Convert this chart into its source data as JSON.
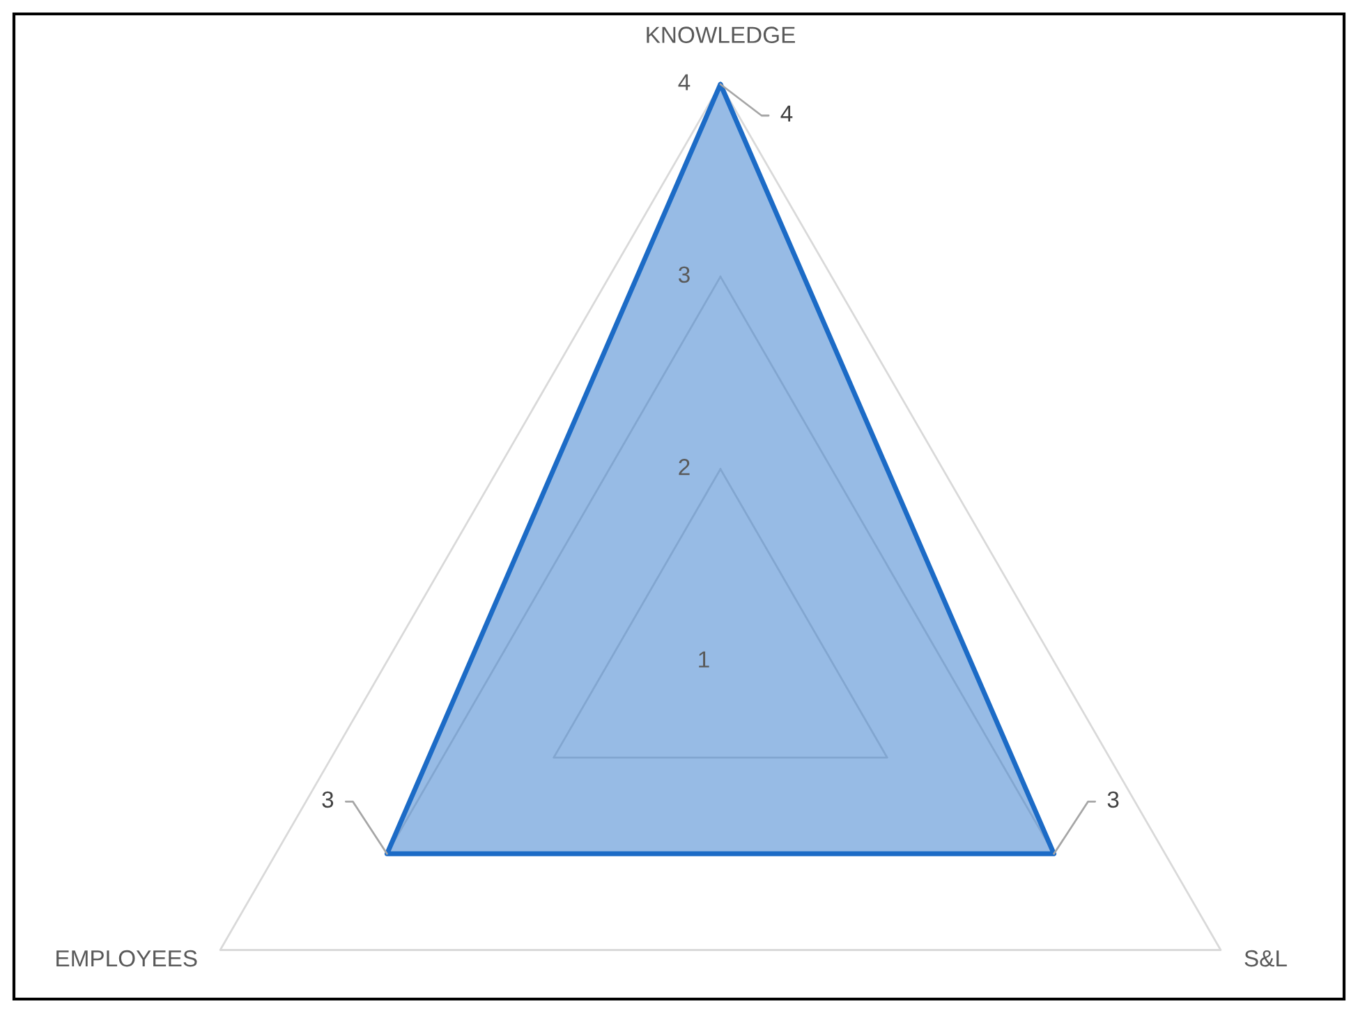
{
  "chart_data": {
    "type": "radar",
    "categories": [
      "KNOWLEDGE",
      "S&L",
      "EMPLOYEES"
    ],
    "series": [
      {
        "color": "#1c6bc6",
        "values": [
          4,
          3,
          3
        ]
      }
    ],
    "ylim": [
      1,
      4
    ],
    "yticks": [
      1,
      2,
      3,
      4
    ],
    "grid": true,
    "data_labels": true
  }
}
